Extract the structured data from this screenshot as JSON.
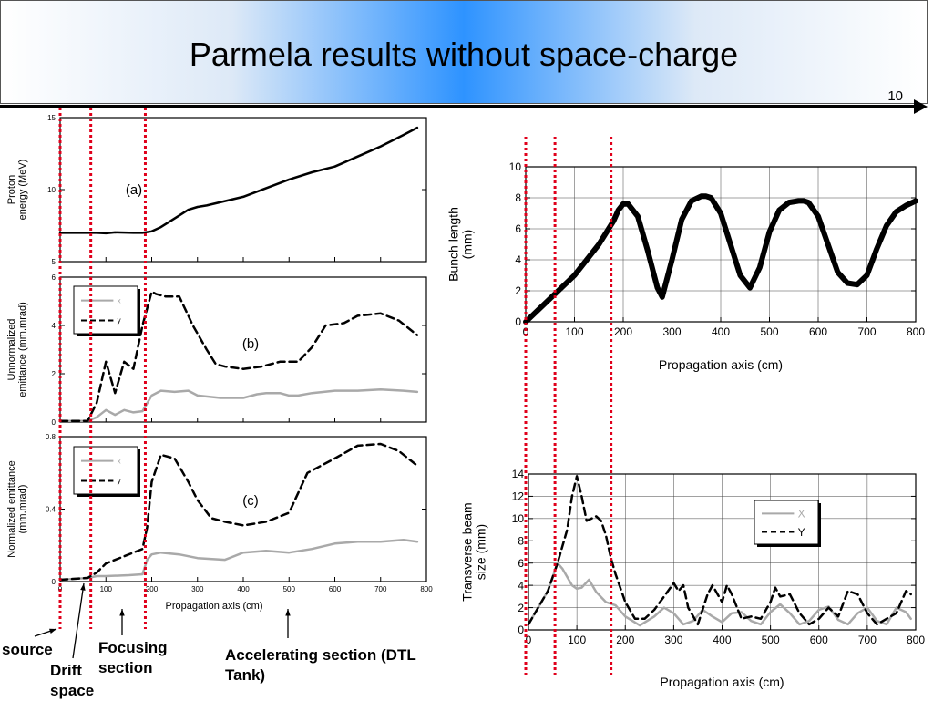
{
  "slide": {
    "title": "Parmela results without space-charge",
    "number": "10"
  },
  "colors": {
    "marker": "#e0001b",
    "x_series": "#a9a9a9",
    "y_series": "#000000",
    "accent": "#2e93ff"
  },
  "annotations": {
    "source": "source",
    "drift": "Drift space",
    "focusing": "Focusing section",
    "accelerating": "Accelerating section (DTL Tank)"
  },
  "chart_data": [
    {
      "id": "energy",
      "type": "line",
      "panel_label": "(a)",
      "ylabel": "Proton energy (MeV)",
      "xlim": [
        0,
        800
      ],
      "ylim": [
        5,
        15
      ],
      "yticks": [
        5,
        10,
        15
      ],
      "ytick_labels": [
        "5",
        "10",
        "15"
      ],
      "series": [
        {
          "x": [
            0,
            40,
            80,
            100,
            120,
            160,
            180,
            200,
            220,
            240,
            260,
            280,
            300,
            320,
            360,
            400,
            450,
            500,
            550,
            600,
            650,
            700,
            750,
            780
          ],
          "y": [
            7,
            7,
            7,
            6.97,
            7.03,
            7,
            7,
            7.1,
            7.4,
            7.8,
            8.2,
            8.6,
            8.8,
            8.9,
            9.2,
            9.5,
            10.1,
            10.7,
            11.2,
            11.6,
            12.3,
            13,
            13.8,
            14.3
          ]
        }
      ]
    },
    {
      "id": "emit_unnorm",
      "type": "line",
      "panel_label": "(b)",
      "ylabel": "Unnormalized emittance (mm.mrad)",
      "xlim": [
        0,
        800
      ],
      "ylim": [
        0,
        6
      ],
      "yticks": [
        0,
        2,
        4,
        6
      ],
      "ytick_labels": [
        "0",
        "2",
        "4",
        "6"
      ],
      "legend": [
        "x",
        "y"
      ],
      "series": [
        {
          "name": "x",
          "x": [
            0,
            60,
            80,
            100,
            120,
            140,
            160,
            180,
            200,
            220,
            250,
            280,
            300,
            350,
            400,
            430,
            450,
            480,
            500,
            520,
            550,
            600,
            650,
            700,
            750,
            780
          ],
          "y": [
            0.05,
            0.05,
            0.2,
            0.5,
            0.3,
            0.5,
            0.4,
            0.45,
            1.1,
            1.3,
            1.25,
            1.3,
            1.1,
            1.0,
            1.0,
            1.15,
            1.2,
            1.2,
            1.1,
            1.1,
            1.2,
            1.3,
            1.3,
            1.35,
            1.3,
            1.25
          ]
        },
        {
          "name": "y",
          "x": [
            0,
            60,
            80,
            100,
            120,
            140,
            160,
            180,
            200,
            210,
            230,
            260,
            290,
            320,
            340,
            360,
            400,
            440,
            480,
            520,
            550,
            580,
            620,
            650,
            700,
            740,
            780
          ],
          "y": [
            0.05,
            0.05,
            0.8,
            2.5,
            1.2,
            2.5,
            2.2,
            4.0,
            5.4,
            5.3,
            5.2,
            5.2,
            4.0,
            3.0,
            2.4,
            2.3,
            2.2,
            2.3,
            2.5,
            2.5,
            3.1,
            4.0,
            4.1,
            4.4,
            4.5,
            4.2,
            3.6
          ]
        }
      ]
    },
    {
      "id": "emit_norm",
      "type": "line",
      "panel_label": "(c)",
      "ylabel": "Normalized emittance (mm.mrad)",
      "xlim": [
        0,
        800
      ],
      "ylim": [
        0,
        0.8
      ],
      "yticks": [
        0,
        0.4,
        0.8
      ],
      "ytick_labels": [
        "0",
        "0.4",
        "0.8"
      ],
      "xticks": [
        0,
        100,
        200,
        300,
        400,
        500,
        600,
        700,
        800
      ],
      "xtick_labels": [
        "0",
        "100",
        "200",
        "300",
        "400",
        "500",
        "600",
        "700",
        "800"
      ],
      "xlabel": "Propagation axis (cm)",
      "legend": [
        "x",
        "y"
      ],
      "series": [
        {
          "name": "x",
          "x": [
            0,
            60,
            80,
            100,
            150,
            180,
            190,
            200,
            220,
            260,
            300,
            360,
            400,
            450,
            500,
            550,
            600,
            650,
            700,
            750,
            780
          ],
          "y": [
            0.01,
            0.02,
            0.03,
            0.03,
            0.035,
            0.04,
            0.12,
            0.15,
            0.16,
            0.15,
            0.13,
            0.12,
            0.16,
            0.17,
            0.16,
            0.18,
            0.21,
            0.22,
            0.22,
            0.23,
            0.22
          ]
        },
        {
          "name": "y",
          "x": [
            0,
            60,
            80,
            100,
            150,
            180,
            190,
            200,
            220,
            250,
            280,
            300,
            330,
            360,
            400,
            450,
            500,
            540,
            600,
            650,
            700,
            740,
            780
          ],
          "y": [
            0.01,
            0.02,
            0.05,
            0.1,
            0.15,
            0.18,
            0.3,
            0.55,
            0.7,
            0.68,
            0.55,
            0.45,
            0.35,
            0.33,
            0.31,
            0.33,
            0.38,
            0.6,
            0.68,
            0.75,
            0.76,
            0.72,
            0.64
          ]
        }
      ]
    },
    {
      "id": "bunch",
      "type": "line",
      "ylabel": "Bunch length (mm)",
      "xlabel": "Propagation axis (cm)",
      "xlim": [
        0,
        800
      ],
      "ylim": [
        0,
        10
      ],
      "xticks": [
        0,
        100,
        200,
        300,
        400,
        500,
        600,
        700,
        800
      ],
      "xtick_labels": [
        "0",
        "100",
        "200",
        "300",
        "400",
        "500",
        "600",
        "700",
        "800"
      ],
      "yticks": [
        0,
        2,
        4,
        6,
        8,
        10
      ],
      "ytick_labels": [
        "0",
        "2",
        "4",
        "6",
        "8",
        "10"
      ],
      "series": [
        {
          "x": [
            0,
            100,
            150,
            180,
            190,
            200,
            210,
            230,
            250,
            270,
            280,
            300,
            320,
            340,
            360,
            370,
            380,
            400,
            420,
            440,
            460,
            480,
            500,
            520,
            540,
            560,
            570,
            580,
            600,
            620,
            640,
            660,
            680,
            700,
            720,
            740,
            760,
            780,
            800
          ],
          "y": [
            0,
            3,
            5,
            6.5,
            7.2,
            7.6,
            7.6,
            6.8,
            4.6,
            2.2,
            1.6,
            4.0,
            6.6,
            7.8,
            8.1,
            8.1,
            8.0,
            7.0,
            5.0,
            3.0,
            2.2,
            3.5,
            5.8,
            7.2,
            7.7,
            7.8,
            7.8,
            7.7,
            6.8,
            5.0,
            3.2,
            2.5,
            2.4,
            3.0,
            4.7,
            6.2,
            7.1,
            7.5,
            7.8
          ]
        }
      ]
    },
    {
      "id": "beam_size",
      "type": "line",
      "ylabel": "Transverse beam size (mm)",
      "xlabel": "Propagation axis (cm)",
      "xlim": [
        0,
        800
      ],
      "ylim": [
        0,
        14
      ],
      "xticks": [
        0,
        100,
        200,
        300,
        400,
        500,
        600,
        700,
        800
      ],
      "xtick_labels": [
        "0",
        "100",
        "200",
        "300",
        "400",
        "500",
        "600",
        "700",
        "800"
      ],
      "yticks": [
        0,
        2,
        4,
        6,
        8,
        10,
        12,
        14
      ],
      "ytick_labels": [
        "0",
        "2",
        "4",
        "6",
        "8",
        "10",
        "12",
        "14"
      ],
      "legend": [
        "X",
        "Y"
      ],
      "series": [
        {
          "name": "X",
          "x": [
            0,
            40,
            60,
            70,
            90,
            100,
            110,
            125,
            140,
            160,
            180,
            200,
            230,
            260,
            280,
            300,
            320,
            340,
            360,
            380,
            400,
            420,
            440,
            460,
            480,
            500,
            520,
            540,
            560,
            580,
            600,
            620,
            640,
            660,
            680,
            700,
            720,
            740,
            760,
            780,
            790
          ],
          "y": [
            0.5,
            3.5,
            6,
            5.5,
            4,
            3.7,
            3.8,
            4.5,
            3.4,
            2.5,
            2.2,
            1.2,
            0.4,
            1.2,
            2.0,
            1.5,
            0.5,
            0.8,
            1.8,
            1.2,
            0.7,
            1.5,
            1.6,
            0.8,
            0.5,
            1.6,
            2.3,
            1.5,
            0.5,
            0.8,
            1.8,
            2.1,
            0.9,
            0.5,
            1.5,
            2.0,
            0.8,
            0.5,
            2.0,
            1.6,
            1.0
          ]
        },
        {
          "name": "Y",
          "x": [
            0,
            40,
            60,
            80,
            90,
            100,
            110,
            120,
            130,
            140,
            150,
            160,
            170,
            180,
            200,
            220,
            240,
            260,
            280,
            300,
            310,
            320,
            330,
            350,
            370,
            380,
            400,
            410,
            420,
            440,
            460,
            480,
            500,
            510,
            520,
            540,
            560,
            580,
            600,
            620,
            640,
            660,
            680,
            700,
            720,
            740,
            760,
            780,
            790
          ],
          "y": [
            0.5,
            3.5,
            6,
            9,
            12,
            13.8,
            12,
            9.8,
            10,
            10.2,
            9.8,
            8.5,
            6.5,
            5,
            2.5,
            1.0,
            1.0,
            1.8,
            3.0,
            4.2,
            3.5,
            4.0,
            2.0,
            0.5,
            3.2,
            4.0,
            2.5,
            4.0,
            3.2,
            1.0,
            1.2,
            1.0,
            2.5,
            3.8,
            3.0,
            3.2,
            1.5,
            0.5,
            1.0,
            2.0,
            1.2,
            3.5,
            3.2,
            1.5,
            0.5,
            1.0,
            1.5,
            3.5,
            3.2
          ]
        }
      ]
    }
  ],
  "markers": {
    "left_x": [
      0,
      67,
      186
    ],
    "right_x": [
      0,
      60,
      175
    ]
  }
}
